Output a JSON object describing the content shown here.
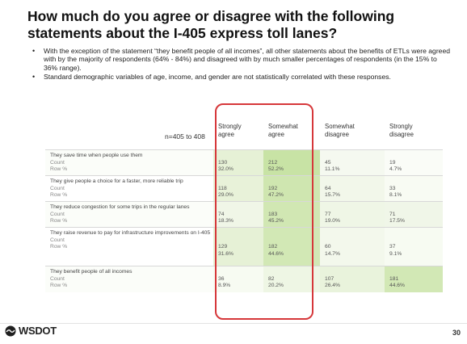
{
  "title": "How much do you agree or disagree with the following statements about the I-405 express toll lanes?",
  "bullets": [
    "With the exception of the statement “they benefit people of all incomes”, all other statements about the benefits of ETLs were agreed with by the majority of respondents (64% - 84%) and disagreed with by much smaller percentages of respondents (in the 15% to 36% range).",
    "Standard demographic variables of age, income, and gender are not statistically correlated with these responses."
  ],
  "table": {
    "n_label": "n=405 to 408",
    "columns": [
      {
        "l1": "Strongly",
        "l2": "agree"
      },
      {
        "l1": "Somewhat",
        "l2": "agree"
      },
      {
        "l1": "Somewhat",
        "l2": "disagree"
      },
      {
        "l1": "Strongly",
        "l2": "disagree"
      }
    ],
    "count_label": "Count",
    "rowpct_label": "Row %",
    "rows": [
      {
        "label": "They save time when people use them",
        "cells": [
          {
            "count": "130",
            "pct": "32.0%",
            "shade": "#e6f1d6"
          },
          {
            "count": "212",
            "pct": "52.2%",
            "shade": "#c8e3a5"
          },
          {
            "count": "45",
            "pct": "11.1%",
            "shade": "#f5f9f0"
          },
          {
            "count": "19",
            "pct": "4.7%",
            "shade": "#fafcf7"
          }
        ]
      },
      {
        "label": "They give people a choice for a faster, more reliable trip",
        "cells": [
          {
            "count": "118",
            "pct": "29.0%",
            "shade": "#e8f2d9"
          },
          {
            "count": "192",
            "pct": "47.2%",
            "shade": "#cfe6b0"
          },
          {
            "count": "64",
            "pct": "15.7%",
            "shade": "#f2f7ea"
          },
          {
            "count": "33",
            "pct": "8.1%",
            "shade": "#f8fbf3"
          }
        ]
      },
      {
        "label": "They reduce congestion for some trips in the regular lanes",
        "cells": [
          {
            "count": "74",
            "pct": "18.3%",
            "shade": "#f0f6e7"
          },
          {
            "count": "183",
            "pct": "45.2%",
            "shade": "#d1e7b3"
          },
          {
            "count": "77",
            "pct": "19.0%",
            "shade": "#eff6e6"
          },
          {
            "count": "71",
            "pct": "17.5%",
            "shade": "#f0f6e8"
          }
        ]
      },
      {
        "label": "They raise revenue to pay for infrastructure improvements on I-405",
        "cells": [
          {
            "count": "129",
            "pct": "31.6%",
            "shade": "#e6f1d6"
          },
          {
            "count": "182",
            "pct": "44.6%",
            "shade": "#d2e8b5"
          },
          {
            "count": "60",
            "pct": "14.7%",
            "shade": "#f3f8ec"
          },
          {
            "count": "37",
            "pct": "9.1%",
            "shade": "#f7fbf2"
          }
        ]
      },
      {
        "label": "They benefit people of all incomes",
        "cells": [
          {
            "count": "36",
            "pct": "8.9%",
            "shade": "#f7fbf2"
          },
          {
            "count": "82",
            "pct": "20.2%",
            "shade": "#eef6e4"
          },
          {
            "count": "107",
            "pct": "26.4%",
            "shade": "#e9f3dc"
          },
          {
            "count": "181",
            "pct": "44.6%",
            "shade": "#d2e8b5"
          }
        ]
      }
    ]
  },
  "footer": {
    "logo": "WSDOT",
    "page": "30"
  }
}
